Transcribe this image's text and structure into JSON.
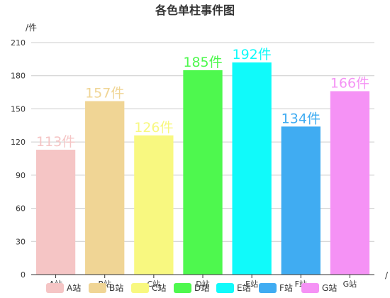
{
  "chart_data": {
    "type": "bar",
    "title": "各色单柱事件图",
    "ylabel": "/件",
    "xlabel": "/",
    "categories": [
      "A站",
      "B站",
      "C站",
      "D站",
      "E站",
      "F站",
      "G站"
    ],
    "values": [
      113,
      157,
      126,
      185,
      192,
      134,
      166
    ],
    "data_labels": [
      "113件",
      "157件",
      "126件",
      "185件",
      "192件",
      "134件",
      "166件"
    ],
    "colors": [
      "#f5c5c5",
      "#f0d595",
      "#f8f880",
      "#4ef84e",
      "#10fafa",
      "#40acf2",
      "#f592f5"
    ],
    "yticks": [
      0,
      30,
      60,
      90,
      120,
      150,
      180,
      210
    ],
    "ytick_labels": [
      "0",
      "30",
      "60",
      "90",
      "120",
      "150",
      "180",
      "210"
    ],
    "ylim": [
      0,
      210
    ],
    "grid": true,
    "legend": {
      "position": "bottom",
      "entries": [
        "A站",
        "B站",
        "C站",
        "D站",
        "E站",
        "F站",
        "G站"
      ]
    }
  }
}
